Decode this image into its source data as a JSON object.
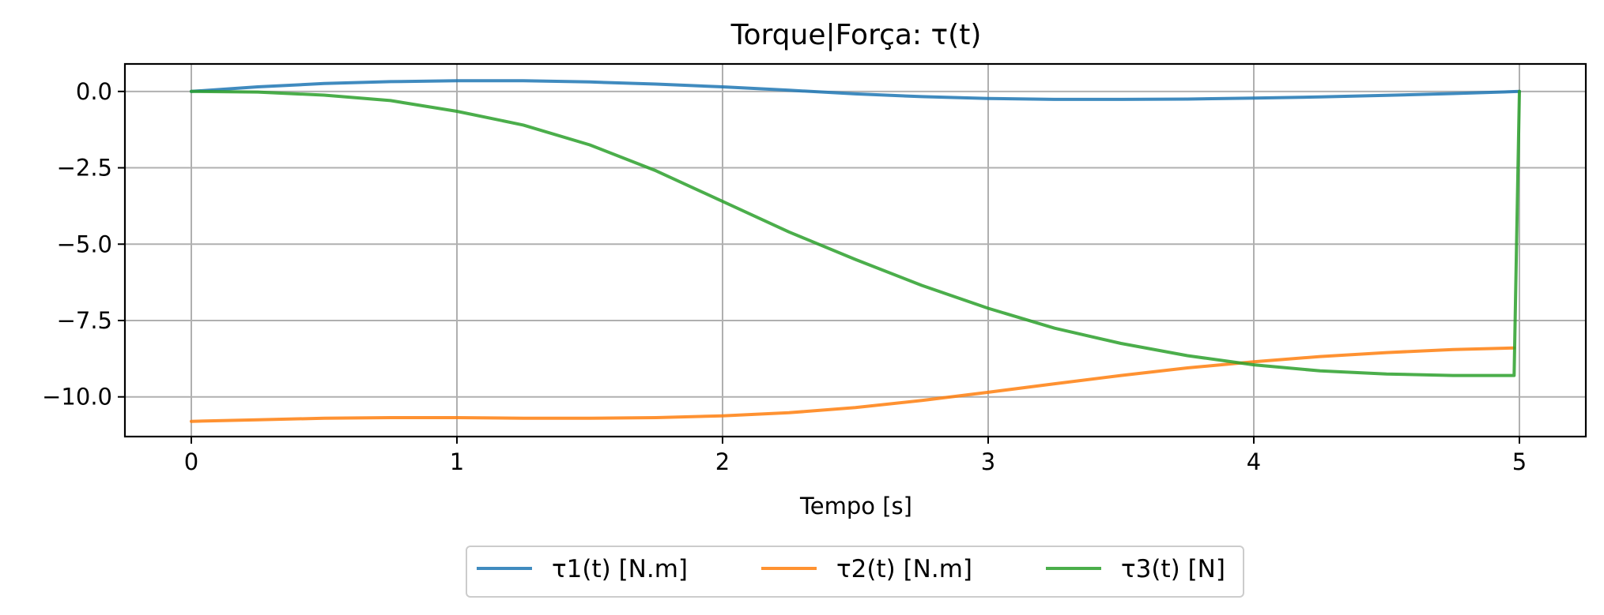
{
  "chart_data": {
    "type": "line",
    "title": "Torque|Força: τ(t)",
    "xlabel": "Tempo [s]",
    "ylabel": "",
    "xlim": [
      -0.25,
      5.25
    ],
    "ylim": [
      -11.3,
      0.9
    ],
    "xticks": [
      0,
      1,
      2,
      3,
      4,
      5
    ],
    "xtick_labels": [
      "0",
      "1",
      "2",
      "3",
      "4",
      "5"
    ],
    "yticks": [
      0.0,
      -2.5,
      -5.0,
      -7.5,
      -10.0
    ],
    "ytick_labels": [
      "0.0",
      "−2.5",
      "−5.0",
      "−7.5",
      "−10.0"
    ],
    "grid": true,
    "legend_position": "bottom-center",
    "series": [
      {
        "name": "τ1(t) [N.m]",
        "color": "#1f77b4",
        "x": [
          0,
          0.25,
          0.5,
          0.75,
          1.0,
          1.25,
          1.5,
          1.75,
          2.0,
          2.25,
          2.5,
          2.75,
          3.0,
          3.25,
          3.5,
          3.75,
          4.0,
          4.25,
          4.5,
          4.75,
          5.0
        ],
        "y": [
          0.0,
          0.15,
          0.26,
          0.32,
          0.35,
          0.35,
          0.31,
          0.24,
          0.15,
          0.04,
          -0.08,
          -0.17,
          -0.23,
          -0.26,
          -0.26,
          -0.25,
          -0.22,
          -0.18,
          -0.13,
          -0.07,
          0.0
        ]
      },
      {
        "name": "τ2(t) [N.m]",
        "color": "#ff7f0e",
        "x": [
          0,
          0.25,
          0.5,
          0.75,
          1.0,
          1.25,
          1.5,
          1.75,
          2.0,
          2.25,
          2.5,
          2.75,
          3.0,
          3.25,
          3.5,
          3.75,
          4.0,
          4.25,
          4.5,
          4.75,
          4.98
        ],
        "y": [
          -10.8,
          -10.75,
          -10.7,
          -10.68,
          -10.68,
          -10.7,
          -10.7,
          -10.68,
          -10.62,
          -10.52,
          -10.35,
          -10.12,
          -9.85,
          -9.57,
          -9.3,
          -9.05,
          -8.85,
          -8.68,
          -8.55,
          -8.45,
          -8.4
        ]
      },
      {
        "name": "τ3(t) [N]",
        "color": "#2ca02c",
        "x": [
          0,
          0.25,
          0.5,
          0.75,
          1.0,
          1.25,
          1.5,
          1.75,
          2.0,
          2.25,
          2.5,
          2.75,
          3.0,
          3.25,
          3.5,
          3.75,
          4.0,
          4.25,
          4.5,
          4.75,
          4.98,
          5.0
        ],
        "y": [
          0.0,
          -0.02,
          -0.12,
          -0.3,
          -0.65,
          -1.1,
          -1.75,
          -2.6,
          -3.6,
          -4.6,
          -5.5,
          -6.35,
          -7.1,
          -7.75,
          -8.25,
          -8.65,
          -8.95,
          -9.15,
          -9.25,
          -9.3,
          -9.3,
          0.0
        ]
      }
    ]
  }
}
